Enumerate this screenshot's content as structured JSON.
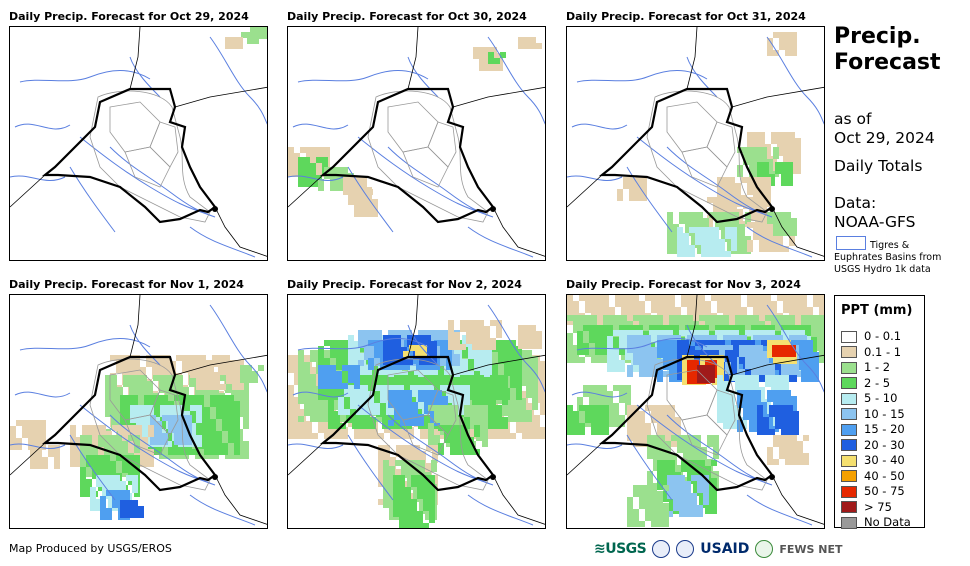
{
  "panels": [
    {
      "title": "Daily Precip. Forecast for Oct 29, 2024"
    },
    {
      "title": "Daily Precip. Forecast for Oct 30, 2024"
    },
    {
      "title": "Daily Precip. Forecast for Oct 31, 2024"
    },
    {
      "title": "Daily Precip. Forecast for Nov 1, 2024"
    },
    {
      "title": "Daily Precip. Forecast for Nov 2, 2024"
    },
    {
      "title": "Daily Precip. Forecast for Nov 3, 2024"
    }
  ],
  "side": {
    "title_line1": "Precip.",
    "title_line2": "Forecast",
    "asof_line1": "as of",
    "asof_line2": "Oct 29, 2024",
    "daily": "Daily Totals",
    "data_line1": "Data:",
    "data_line2": "NOAA-GFS",
    "basin_line1": "Tigres &",
    "basin_line2": "Euphrates Basins from",
    "basin_line3": "USGS Hydro 1k data"
  },
  "legend": {
    "title": "PPT (mm)",
    "items": [
      {
        "label": "0 - 0.1",
        "color": "#ffffff"
      },
      {
        "label": "0.1 - 1",
        "color": "#e6d2b0"
      },
      {
        "label": "1 - 2",
        "color": "#9be08e"
      },
      {
        "label": "2 - 5",
        "color": "#5ed85c"
      },
      {
        "label": "5 - 10",
        "color": "#b7ecf0"
      },
      {
        "label": "10 - 15",
        "color": "#8cc4f0"
      },
      {
        "label": "15 - 20",
        "color": "#4f9ff0"
      },
      {
        "label": "20 - 30",
        "color": "#1f5fe0"
      },
      {
        "label": "30 - 40",
        "color": "#f5e070"
      },
      {
        "label": "40 - 50",
        "color": "#f5a000"
      },
      {
        "label": "50 - 75",
        "color": "#e62800"
      },
      {
        "label": "> 75",
        "color": "#a01a1a"
      },
      {
        "label": "No Data",
        "color": "#9a9a9a"
      }
    ]
  },
  "footer": {
    "credit": "Map Produced by USGS/EROS",
    "logo_usgs": "≋USGS",
    "logo_usaid": "USAID",
    "logo_fews": "FEWS NET"
  }
}
